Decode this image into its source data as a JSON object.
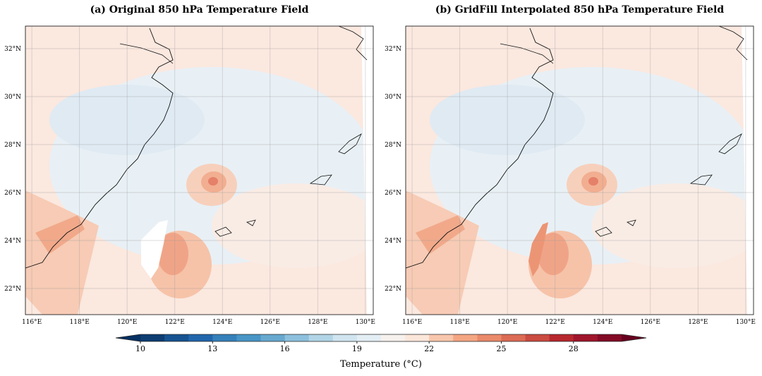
{
  "figure": {
    "panels": [
      {
        "title": "(a) Original 850 hPa Temperature Field",
        "lon_range": [
          115.73,
          130.33
        ],
        "lat_range": [
          20.91,
          32.94
        ],
        "lon_ticks": [
          {
            "value": 116,
            "label": "116°E"
          },
          {
            "value": 118,
            "label": "118°E"
          },
          {
            "value": 120,
            "label": "120°E"
          },
          {
            "value": 122,
            "label": "122°E"
          },
          {
            "value": 124,
            "label": "124°E"
          },
          {
            "value": 126,
            "label": "126°E"
          },
          {
            "value": 128,
            "label": "128°E"
          },
          {
            "value": 130,
            "label": "130°E"
          }
        ],
        "lat_ticks": [
          {
            "value": 22,
            "label": "22°N"
          },
          {
            "value": 24,
            "label": "24°N"
          },
          {
            "value": 26,
            "label": "26°N"
          },
          {
            "value": 28,
            "label": "28°N"
          },
          {
            "value": 30,
            "label": "30°N"
          },
          {
            "value": 32,
            "label": "32°N"
          }
        ]
      },
      {
        "title": "(b) GridFill Interpolated 850 hPa Temperature Field",
        "lon_range": [
          115.73,
          130.33
        ],
        "lat_range": [
          20.91,
          32.94
        ],
        "lon_ticks": [
          {
            "value": 116,
            "label": "116°E"
          },
          {
            "value": 118,
            "label": "118°E"
          },
          {
            "value": 120,
            "label": "120°E"
          },
          {
            "value": 122,
            "label": "122°E"
          },
          {
            "value": 124,
            "label": "124°E"
          },
          {
            "value": 126,
            "label": "126°E"
          },
          {
            "value": 128,
            "label": "128°E"
          },
          {
            "value": 130,
            "label": "130°E"
          }
        ],
        "lat_ticks": [
          {
            "value": 22,
            "label": "22°N"
          },
          {
            "value": 24,
            "label": "24°N"
          },
          {
            "value": 26,
            "label": "26°N"
          },
          {
            "value": 28,
            "label": "28°N"
          },
          {
            "value": 30,
            "label": "30°N"
          },
          {
            "value": 32,
            "label": "32°N"
          }
        ]
      }
    ],
    "colorbar": {
      "label": "Temperature (°C)",
      "range": [
        10,
        30
      ],
      "ticks": [
        10,
        13,
        16,
        19,
        22,
        25,
        28
      ],
      "colors": [
        "#0d3d71",
        "#175391",
        "#2166ac",
        "#3580ba",
        "#4795c6",
        "#67a9cf",
        "#8dc0dd",
        "#b1d5e7",
        "#d1e5f0",
        "#e3eef4",
        "#f7f1ee",
        "#fbe6da",
        "#f8c6ac",
        "#f4a683",
        "#ea8a6b",
        "#dc6b55",
        "#ca4b41",
        "#b7282e",
        "#a0152b",
        "#830a25"
      ],
      "extend_colors": [
        "#053061",
        "#67001f"
      ]
    }
  }
}
